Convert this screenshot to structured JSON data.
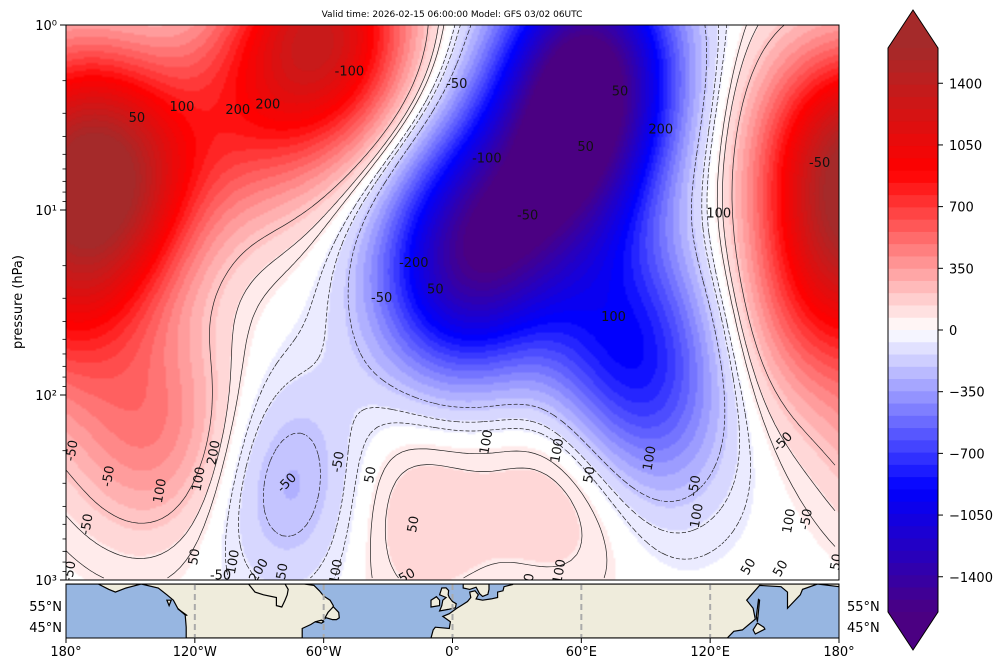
{
  "header": {
    "title": "Valid time: 2026-02-15 06:00:00 Model: GFS 03/02 06UTC"
  },
  "chart_data": {
    "type": "heatmap",
    "title": "Valid time: 2026-02-15 06:00:00 Model: GFS 03/02 06UTC",
    "ylabel": "pressure (hPa)",
    "xlabel": "",
    "y_scale": "log",
    "y_direction": "inverted",
    "ylim": [
      1000,
      1
    ],
    "xlim": [
      -180,
      180
    ],
    "y_ticks": [
      {
        "value": 1,
        "label": "10⁰"
      },
      {
        "value": 10,
        "label": "10¹"
      },
      {
        "value": 100,
        "label": "10²"
      },
      {
        "value": 1000,
        "label": "10³"
      }
    ],
    "x_ticks": [
      {
        "value": -180,
        "label": "180°"
      },
      {
        "value": -120,
        "label": "120°W"
      },
      {
        "value": -60,
        "label": "60°W"
      },
      {
        "value": 0,
        "label": "0°"
      },
      {
        "value": 60,
        "label": "60°E"
      },
      {
        "value": 120,
        "label": "120°E"
      },
      {
        "value": 180,
        "label": "180°"
      }
    ],
    "colorbar": {
      "min": -1600,
      "max": 1600,
      "extend": "both",
      "ticks": [
        1400,
        1050,
        700,
        350,
        0,
        -350,
        -700,
        -1050,
        -1400
      ],
      "tick_labels": [
        "1400",
        "1050",
        "700",
        "350",
        "0",
        "−350",
        "−700",
        "−1050",
        "−1400"
      ],
      "colors": {
        "low": "#4b0082",
        "mid_low": "#0000ff",
        "zero": "#ffffff",
        "mid_high": "#ff0000",
        "high": "#a52a2a"
      }
    },
    "field_blobs": [
      {
        "lon": -155,
        "p": 6,
        "value": 1000
      },
      {
        "lon": -175,
        "p": 15,
        "value": 700
      },
      {
        "lon": -60,
        "p": 1.1,
        "value": 1200
      },
      {
        "lon": -95,
        "p": 3,
        "value": 500
      },
      {
        "lon": 65,
        "p": 1.5,
        "value": -1300
      },
      {
        "lon": 55,
        "p": 5,
        "value": -1100
      },
      {
        "lon": 20,
        "p": 12,
        "value": -900
      },
      {
        "lon": 0,
        "p": 25,
        "value": -800
      },
      {
        "lon": 80,
        "p": 50,
        "value": -700
      },
      {
        "lon": 90,
        "p": 150,
        "value": -400
      },
      {
        "lon": -75,
        "p": 300,
        "value": -300
      },
      {
        "lon": 60,
        "p": 250,
        "value": 300
      },
      {
        "lon": 175,
        "p": 4,
        "value": 600
      },
      {
        "lon": 170,
        "p": 40,
        "value": 350
      },
      {
        "lon": -140,
        "p": 150,
        "value": 450
      },
      {
        "lon": -20,
        "p": 400,
        "value": 200
      }
    ],
    "contour_labels": [
      {
        "lon": -147,
        "p": 3.2,
        "text": "50",
        "angle": 0
      },
      {
        "lon": -126,
        "p": 2.8,
        "text": "100",
        "angle": 0
      },
      {
        "lon": -100,
        "p": 2.9,
        "text": "200",
        "angle": 0
      },
      {
        "lon": -86,
        "p": 2.7,
        "text": "200",
        "angle": 0
      },
      {
        "lon": -48,
        "p": 1.8,
        "text": "-100",
        "angle": 0
      },
      {
        "lon": 2,
        "p": 2.1,
        "text": "-50",
        "angle": 0
      },
      {
        "lon": 78,
        "p": 2.3,
        "text": "50",
        "angle": 0
      },
      {
        "lon": 97,
        "p": 3.7,
        "text": "200",
        "angle": 0
      },
      {
        "lon": 171,
        "p": 5.6,
        "text": "-50",
        "angle": 0
      },
      {
        "lon": 16,
        "p": 5.3,
        "text": "-100",
        "angle": 0
      },
      {
        "lon": 62,
        "p": 4.6,
        "text": "50",
        "angle": 0
      },
      {
        "lon": 35,
        "p": 10.8,
        "text": "-50",
        "angle": 0
      },
      {
        "lon": 124,
        "p": 10.5,
        "text": "100",
        "angle": 0
      },
      {
        "lon": -18,
        "p": 19.5,
        "text": "-200",
        "angle": 0
      },
      {
        "lon": -33,
        "p": 30,
        "text": "-50",
        "angle": 0
      },
      {
        "lon": -8,
        "p": 27,
        "text": "50",
        "angle": 0
      },
      {
        "lon": 75,
        "p": 38,
        "text": "100",
        "angle": 0
      },
      {
        "lon": -177,
        "p": 200,
        "text": "-50",
        "angle": -80
      },
      {
        "lon": -160,
        "p": 275,
        "text": "-50",
        "angle": -80
      },
      {
        "lon": -170,
        "p": 500,
        "text": "-50",
        "angle": -80
      },
      {
        "lon": -136,
        "p": 330,
        "text": "100",
        "angle": -80
      },
      {
        "lon": -118,
        "p": 285,
        "text": "100",
        "angle": -80
      },
      {
        "lon": -111,
        "p": 205,
        "text": "200",
        "angle": -80
      },
      {
        "lon": -120,
        "p": 750,
        "text": "50",
        "angle": -80
      },
      {
        "lon": -102,
        "p": 800,
        "text": "100",
        "angle": -80
      },
      {
        "lon": -77,
        "p": 300,
        "text": "-50",
        "angle": -45
      },
      {
        "lon": -53,
        "p": 230,
        "text": "-50",
        "angle": -80
      },
      {
        "lon": -38,
        "p": 270,
        "text": "50",
        "angle": -80
      },
      {
        "lon": -18,
        "p": 500,
        "text": "50",
        "angle": -80
      },
      {
        "lon": 16,
        "p": 180,
        "text": "100",
        "angle": -80
      },
      {
        "lon": 49,
        "p": 200,
        "text": "100",
        "angle": -80
      },
      {
        "lon": 64,
        "p": 270,
        "text": "50",
        "angle": -80
      },
      {
        "lon": 92,
        "p": 220,
        "text": "100",
        "angle": -80
      },
      {
        "lon": 113,
        "p": 310,
        "text": "-50",
        "angle": -80
      },
      {
        "lon": 114,
        "p": 450,
        "text": "100",
        "angle": -80
      },
      {
        "lon": 154,
        "p": 180,
        "text": "-50",
        "angle": -45
      },
      {
        "lon": 157,
        "p": 480,
        "text": "100",
        "angle": -80
      },
      {
        "lon": 165,
        "p": 470,
        "text": "-50",
        "angle": -80
      },
      {
        "lon": 138,
        "p": 850,
        "text": "50",
        "angle": -60
      },
      {
        "lon": 153,
        "p": 870,
        "text": "50",
        "angle": -60
      },
      {
        "lon": -178,
        "p": 900,
        "text": "-50",
        "angle": -80
      },
      {
        "lon": -108,
        "p": 950,
        "text": "-50",
        "angle": 0
      },
      {
        "lon": -90,
        "p": 890,
        "text": "200",
        "angle": -60
      },
      {
        "lon": -79,
        "p": 900,
        "text": "50",
        "angle": -80
      },
      {
        "lon": -54,
        "p": 900,
        "text": "100",
        "angle": -80
      },
      {
        "lon": -22,
        "p": 970,
        "text": "-50",
        "angle": -30
      },
      {
        "lon": 36,
        "p": 970,
        "text": "0",
        "angle": -80
      },
      {
        "lon": 50,
        "p": 900,
        "text": "100",
        "angle": -80
      },
      {
        "lon": 179,
        "p": 800,
        "text": "50",
        "angle": -80
      }
    ],
    "map_strip": {
      "lat_labels_left": [
        "55°N",
        "45°N"
      ],
      "lat_labels_right": [
        "55°N",
        "45°N"
      ],
      "colors": {
        "ocean": "#97b6e1",
        "land": "#efecdc",
        "coast": "#000000",
        "grid": "#aaaaaa"
      }
    }
  }
}
